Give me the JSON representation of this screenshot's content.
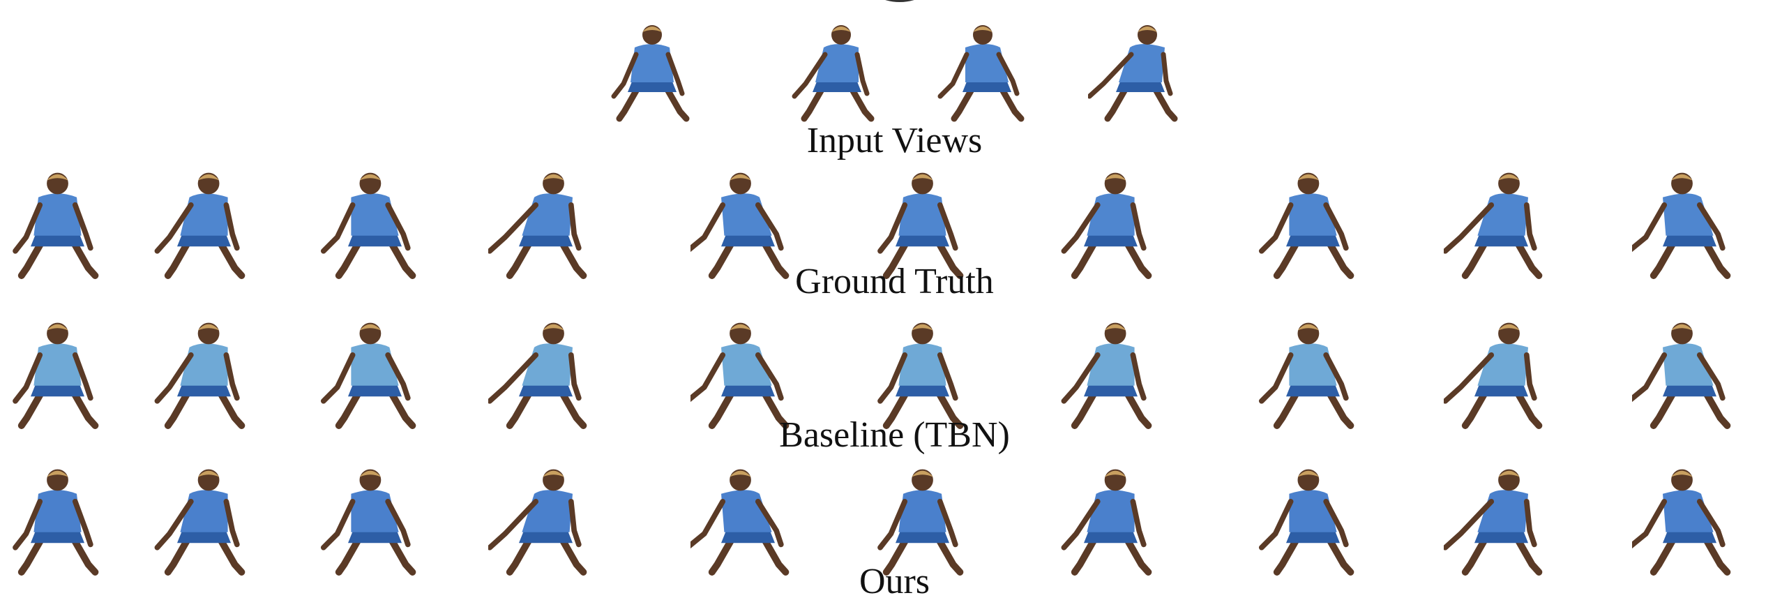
{
  "captions": {
    "input_views": "Input Views",
    "ground_truth": "Ground Truth",
    "baseline": "Baseline (TBN)",
    "ours": "Ours"
  },
  "rows": [
    {
      "id": "input-views",
      "figure_count": 4
    },
    {
      "id": "ground-truth",
      "figure_count": 10
    },
    {
      "id": "baseline",
      "figure_count": 10
    },
    {
      "id": "ours",
      "figure_count": 10
    }
  ],
  "colors": {
    "shirt_gt": "#4f86cf",
    "shirt_baseline": "#6fa9d6",
    "shirt_ours": "#4a80cc",
    "skin": "#5a3a26",
    "hair": "#c9a060",
    "shorts": "#2d5ea6"
  }
}
